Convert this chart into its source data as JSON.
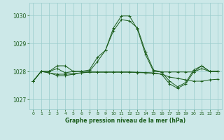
{
  "title": "Graphe pression niveau de la mer (hPa)",
  "background_color": "#cce8e8",
  "grid_color": "#99cccc",
  "line_color": "#1a5c1a",
  "marker": "+",
  "x_ticks": [
    0,
    1,
    2,
    3,
    4,
    5,
    6,
    7,
    8,
    9,
    10,
    11,
    12,
    13,
    14,
    15,
    16,
    17,
    18,
    19,
    20,
    21,
    22,
    23
  ],
  "y_ticks": [
    1027,
    1028,
    1029,
    1030
  ],
  "ylim": [
    1026.65,
    1030.45
  ],
  "xlim": [
    -0.5,
    23.5
  ],
  "series1_x": [
    0,
    1,
    2,
    3,
    4,
    5,
    6,
    7,
    8,
    9,
    10,
    11,
    12,
    13,
    14,
    15,
    16,
    17,
    18,
    19,
    20,
    21,
    22,
    23
  ],
  "series1_y": [
    1027.65,
    1028.0,
    1028.0,
    1028.1,
    1027.95,
    1028.0,
    1028.0,
    1028.05,
    1028.5,
    1028.75,
    1029.55,
    1029.98,
    1029.98,
    1029.5,
    1028.6,
    1028.0,
    1027.98,
    1027.65,
    1027.45,
    1027.6,
    1028.05,
    1028.2,
    1028.0,
    1028.0
  ],
  "series2_x": [
    0,
    1,
    2,
    3,
    4,
    5,
    6,
    7,
    8,
    9,
    10,
    11,
    12,
    13,
    14,
    15,
    16,
    17,
    18,
    19,
    20,
    21,
    22,
    23
  ],
  "series2_y": [
    1027.65,
    1028.0,
    1028.0,
    1028.2,
    1028.2,
    1028.0,
    1028.0,
    1028.0,
    1028.35,
    1028.75,
    1029.45,
    1029.85,
    1029.8,
    1029.55,
    1028.7,
    1028.05,
    1027.98,
    1027.98,
    1027.98,
    1027.98,
    1027.98,
    1028.1,
    1028.0,
    1028.0
  ],
  "series3_x": [
    0,
    1,
    2,
    3,
    4,
    5,
    6,
    7,
    8,
    9,
    10,
    11,
    12,
    13,
    14,
    15,
    16,
    17,
    18,
    19,
    20,
    21,
    22,
    23
  ],
  "series3_y": [
    1027.65,
    1028.0,
    1027.95,
    1027.85,
    1027.85,
    1027.9,
    1027.95,
    1027.98,
    1027.98,
    1027.98,
    1027.98,
    1027.98,
    1027.98,
    1027.97,
    1027.96,
    1027.95,
    1027.9,
    1027.8,
    1027.75,
    1027.7,
    1027.65,
    1027.65,
    1027.7,
    1027.72
  ],
  "series4_x": [
    0,
    1,
    2,
    3,
    4,
    5,
    6,
    7,
    8,
    9,
    10,
    11,
    12,
    13,
    14,
    15,
    16,
    17,
    18,
    19,
    20,
    21,
    22,
    23
  ],
  "series4_y": [
    1027.65,
    1028.0,
    1027.95,
    1027.9,
    1027.9,
    1027.92,
    1027.95,
    1027.97,
    1027.97,
    1027.97,
    1027.97,
    1027.97,
    1027.97,
    1027.96,
    1027.95,
    1027.93,
    1027.9,
    1027.55,
    1027.4,
    1027.55,
    1027.98,
    1028.2,
    1028.0,
    1028.0
  ]
}
